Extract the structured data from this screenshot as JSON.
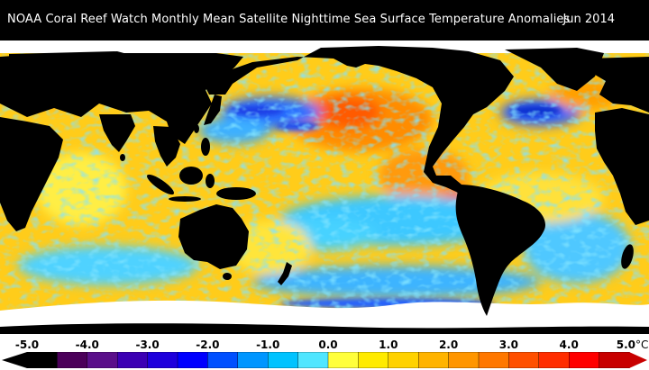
{
  "header": {
    "title": "NOAA Coral Reef Watch Monthly Mean Satellite Nighttime Sea Surface Temperature Anomalies",
    "date": "Jun 2014"
  },
  "colorbar": {
    "tick_labels": [
      "-5.0",
      "-4.0",
      "-3.0",
      "-2.0",
      "-1.0",
      "0.0",
      "1.0",
      "2.0",
      "3.0",
      "4.0",
      "5.0"
    ],
    "unit": "°C",
    "min": -5.0,
    "max": 5.0,
    "colors": [
      "#000000",
      "#4b005a",
      "#5a0f8a",
      "#3c00b4",
      "#1e00dc",
      "#0000ff",
      "#0050ff",
      "#0096ff",
      "#00c3ff",
      "#50e6ff",
      "#ffff3c",
      "#ffeb00",
      "#ffd200",
      "#ffb400",
      "#ff9600",
      "#ff7800",
      "#ff5000",
      "#ff2d00",
      "#ff0000",
      "#c80000"
    ]
  },
  "map_colors": {
    "land": "#000000",
    "ice": "#ffffff",
    "ocean_base": "#ffcc1a",
    "warm": "#ff8c00",
    "hot": "#ff3a00",
    "neutral": "#ffef40",
    "cool": "#3cc8ff",
    "cold": "#1e5aff"
  }
}
